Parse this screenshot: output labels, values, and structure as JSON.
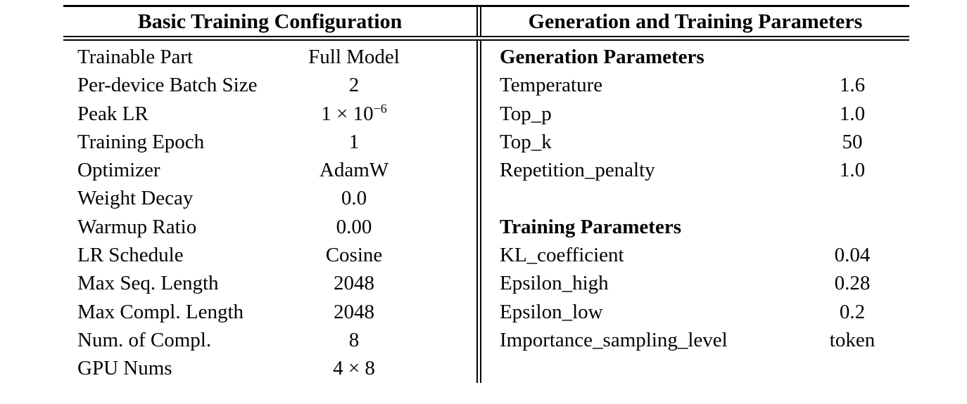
{
  "colors": {
    "background": "#ffffff",
    "text": "#030303",
    "rule": "#000000"
  },
  "table": {
    "left": {
      "title": "Basic Training Configuration",
      "rows": [
        {
          "label": "Trainable Part",
          "value": "Full Model"
        },
        {
          "label": "Per-device Batch Size",
          "value": "2"
        },
        {
          "label": "Peak LR",
          "value": "1 × 10",
          "value_sup": "−6"
        },
        {
          "label": "Training Epoch",
          "value": "1"
        },
        {
          "label": "Optimizer",
          "value": "AdamW"
        },
        {
          "label": "Weight Decay",
          "value": "0.0"
        },
        {
          "label": "Warmup Ratio",
          "value": "0.00"
        },
        {
          "label": "LR Schedule",
          "value": "Cosine"
        },
        {
          "label": "Max Seq. Length",
          "value": "2048"
        },
        {
          "label": "Max Compl. Length",
          "value": "2048"
        },
        {
          "label": "Num. of Compl.",
          "value": "8"
        },
        {
          "label": "GPU Nums",
          "value": "4 × 8"
        }
      ]
    },
    "right": {
      "title": "Generation and Training Parameters",
      "rows": [
        {
          "label": "Generation Parameters",
          "value": "",
          "bold": true
        },
        {
          "label": "Temperature",
          "value": "1.6"
        },
        {
          "label": "Top_p",
          "value": "1.0"
        },
        {
          "label": "Top_k",
          "value": "50"
        },
        {
          "label": "Repetition_penalty",
          "value": "1.0"
        },
        {
          "label": "",
          "value": "",
          "spacer": true
        },
        {
          "label": "Training Parameters",
          "value": "",
          "bold": true
        },
        {
          "label": "KL_coefficient",
          "value": "0.04"
        },
        {
          "label": "Epsilon_high",
          "value": "0.28"
        },
        {
          "label": "Epsilon_low",
          "value": "0.2"
        },
        {
          "label": "Importance_sampling_level",
          "value": "token"
        }
      ]
    }
  }
}
